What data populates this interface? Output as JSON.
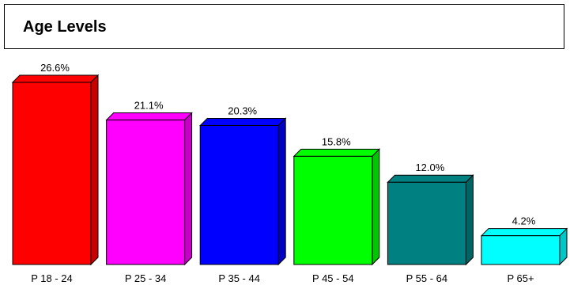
{
  "chart_data": {
    "type": "bar",
    "title": "Age Levels",
    "categories": [
      "P 18 - 24",
      "P 25 - 34",
      "P 35 - 44",
      "P 45 - 54",
      "P 55 - 64",
      "P 65+"
    ],
    "values": [
      26.6,
      21.1,
      20.3,
      15.8,
      12.0,
      4.2
    ],
    "data_labels": [
      "26.6%",
      "21.1%",
      "20.3%",
      "15.8%",
      "12.0%",
      "4.2%"
    ],
    "colors": [
      "#ff0000",
      "#ff00ff",
      "#0000ff",
      "#00ff00",
      "#008080",
      "#00ffff"
    ],
    "xlabel": "",
    "ylabel": "",
    "ylim": [
      0,
      26.6
    ],
    "grid": false,
    "legend": "none",
    "style": "3d"
  }
}
